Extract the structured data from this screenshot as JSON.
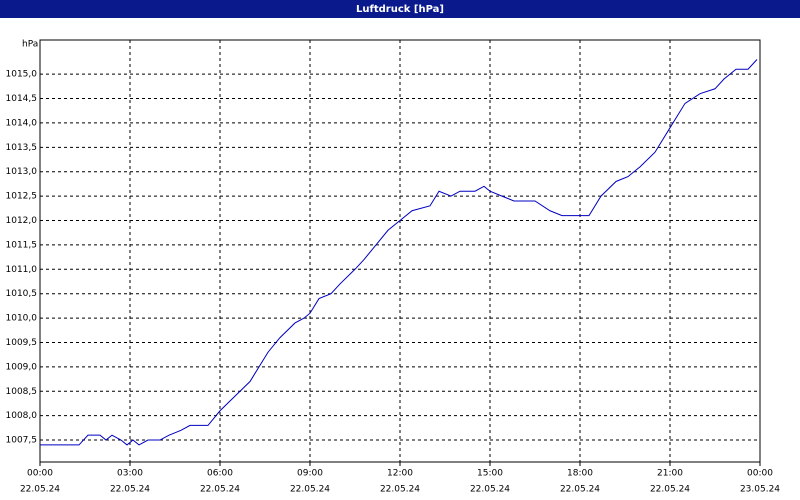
{
  "chart_data": {
    "type": "line",
    "title": "Luftdruck [hPa]",
    "y_label": "hPa",
    "x": [
      0,
      1.3,
      1.6,
      2,
      2.2,
      2.4,
      2.7,
      2.9,
      3.1,
      3.3,
      3.6,
      4,
      4.3,
      4.7,
      5,
      5.6,
      6,
      6.5,
      7,
      7.3,
      7.6,
      8,
      8.5,
      8.8,
      9,
      9.3,
      9.7,
      10,
      10.5,
      10.8,
      11.2,
      11.6,
      12,
      12.4,
      13,
      13.3,
      13.7,
      14,
      14.5,
      14.8,
      15,
      15.4,
      15.8,
      16.5,
      17,
      17.4,
      18.3,
      18.7,
      19.2,
      19.6,
      20,
      20.5,
      21,
      21.5,
      22,
      22.5,
      22.8,
      23.2,
      23.6,
      23.9
    ],
    "series": [
      {
        "name": "Luftdruck",
        "color": "#0000c0",
        "values": [
          1007.4,
          1007.4,
          1007.6,
          1007.6,
          1007.5,
          1007.6,
          1007.5,
          1007.4,
          1007.5,
          1007.4,
          1007.5,
          1007.5,
          1007.6,
          1007.7,
          1007.8,
          1007.8,
          1008.1,
          1008.4,
          1008.7,
          1009.0,
          1009.3,
          1009.6,
          1009.9,
          1010.0,
          1010.1,
          1010.4,
          1010.5,
          1010.7,
          1011.0,
          1011.2,
          1011.5,
          1011.8,
          1012.0,
          1012.2,
          1012.3,
          1012.6,
          1012.5,
          1012.6,
          1012.6,
          1012.7,
          1012.6,
          1012.5,
          1012.4,
          1012.4,
          1012.2,
          1012.1,
          1012.1,
          1012.5,
          1012.8,
          1012.9,
          1013.1,
          1013.4,
          1013.9,
          1014.4,
          1014.6,
          1014.7,
          1014.9,
          1015.1,
          1015.1,
          1015.3
        ]
      }
    ],
    "xlim": [
      0,
      24
    ],
    "xticks": [
      {
        "value": 0,
        "label": "00:00",
        "date": "22.05.24"
      },
      {
        "value": 3,
        "label": "03:00",
        "date": "22.05.24"
      },
      {
        "value": 6,
        "label": "06:00",
        "date": "22.05.24"
      },
      {
        "value": 9,
        "label": "09:00",
        "date": "22.05.24"
      },
      {
        "value": 12,
        "label": "12:00",
        "date": "22.05.24"
      },
      {
        "value": 15,
        "label": "15:00",
        "date": "22.05.24"
      },
      {
        "value": 18,
        "label": "18:00",
        "date": "22.05.24"
      },
      {
        "value": 21,
        "label": "21:00",
        "date": "22.05.24"
      },
      {
        "value": 24,
        "label": "00:00",
        "date": "23.05.24"
      }
    ],
    "ylim": [
      1007.05,
      1015.7
    ],
    "yticks": [
      {
        "value": 1007.5,
        "label": "1007,5"
      },
      {
        "value": 1008.0,
        "label": "1008,0"
      },
      {
        "value": 1008.5,
        "label": "1008,5"
      },
      {
        "value": 1009.0,
        "label": "1009,0"
      },
      {
        "value": 1009.5,
        "label": "1009,5"
      },
      {
        "value": 1010.0,
        "label": "1010,0"
      },
      {
        "value": 1010.5,
        "label": "1010,5"
      },
      {
        "value": 1011.0,
        "label": "1011,0"
      },
      {
        "value": 1011.5,
        "label": "1011,5"
      },
      {
        "value": 1012.0,
        "label": "1012,0"
      },
      {
        "value": 1012.5,
        "label": "1012,5"
      },
      {
        "value": 1013.0,
        "label": "1013,0"
      },
      {
        "value": 1013.5,
        "label": "1013,5"
      },
      {
        "value": 1014.0,
        "label": "1014,0"
      },
      {
        "value": 1014.5,
        "label": "1014,5"
      },
      {
        "value": 1015.0,
        "label": "1015,0"
      }
    ],
    "grid": true
  }
}
